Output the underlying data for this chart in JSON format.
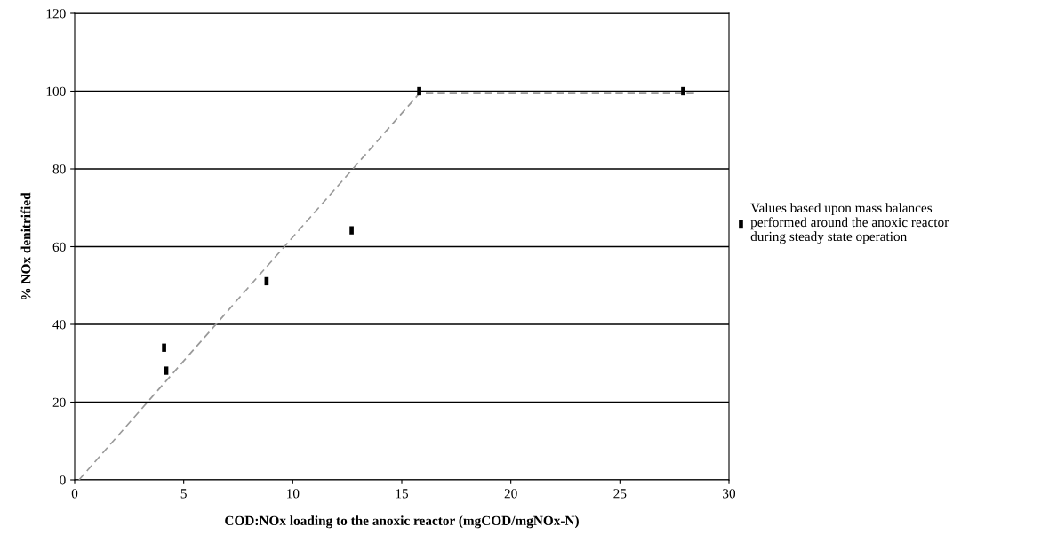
{
  "chart_data": {
    "type": "scatter",
    "xlabel": "COD:NOx loading to the anoxic reactor (mgCOD/mgNOx-N)",
    "ylabel": "% NOx denitrified",
    "xlim": [
      0,
      30
    ],
    "xticks": [
      0,
      5,
      10,
      15,
      20,
      25,
      30
    ],
    "ylim": [
      0,
      120
    ],
    "yticks": [
      0,
      20,
      40,
      60,
      80,
      100,
      120
    ],
    "grid": "y",
    "legend": "right",
    "series": [
      {
        "type": "line",
        "x": [
          0.2,
          15.8,
          28.6
        ],
        "values": [
          0,
          99.4,
          99.4
        ],
        "color": "#999999",
        "line_style": "dashed",
        "marker": "none"
      },
      {
        "name": "Values based upon mass balances performed around the anoxic reactor during steady state operation",
        "x": [
          4.1,
          4.2,
          8.8,
          12.7,
          15.8,
          27.9
        ],
        "values": [
          34,
          28.1,
          51.1,
          64.2,
          100,
          100
        ],
        "color": "#000000",
        "marker": "square"
      }
    ]
  }
}
